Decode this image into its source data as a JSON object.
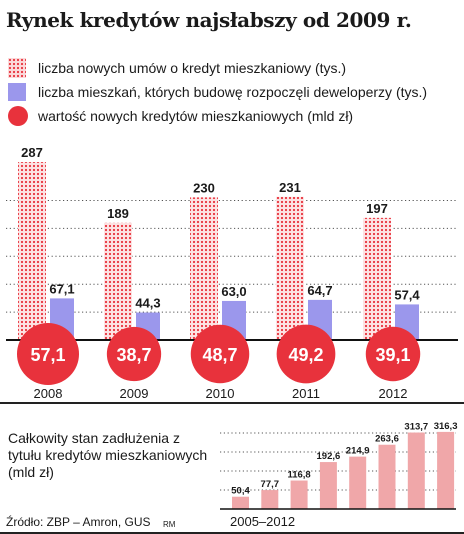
{
  "title": "Rynek kredytów najsłabszy od 2009 r.",
  "legend": [
    {
      "label": "liczba nowych umów o kredyt mieszkaniowy (tys.)",
      "swatch": "dots",
      "color": "#e8323c"
    },
    {
      "label": "liczba mieszkań, których budowę rozpoczęli deweloperzy (tys.)",
      "swatch": "square",
      "color": "#9b97ec"
    },
    {
      "label": "wartość nowych kredytów mieszkaniowych (mld zł)",
      "swatch": "circle",
      "color": "#e8323c"
    }
  ],
  "chart_data": [
    {
      "type": "bar",
      "categories": [
        "2008",
        "2009",
        "2010",
        "2011",
        "2012"
      ],
      "series": [
        {
          "name": "liczba nowych umów o kredyt mieszkaniowy (tys.)",
          "values": [
            287,
            189,
            230,
            231,
            197
          ],
          "labels": [
            "287",
            "189",
            "230",
            "231",
            "197"
          ],
          "color": "#e8323c"
        },
        {
          "name": "liczba mieszkań, których budowę rozpoczęli deweloperzy (tys.)",
          "values": [
            67.1,
            44.3,
            63.0,
            64.7,
            57.4
          ],
          "labels": [
            "67,1",
            "44,3",
            "63,0",
            "64,7",
            "57,4"
          ],
          "color": "#9b97ec"
        },
        {
          "name": "wartość nowych kredytów mieszkaniowych (mld zł)",
          "values": [
            57.1,
            38.7,
            48.7,
            49.2,
            39.1
          ],
          "labels": [
            "57,1",
            "38,7",
            "48,7",
            "49,2",
            "39,1"
          ],
          "color": "#e8323c"
        }
      ],
      "ylim": [
        0,
        300
      ],
      "grid": true
    },
    {
      "type": "bar",
      "title": "Całkowity stan zadłużenia z tytułu kredytów mieszkaniowych (mld zł)",
      "xlabel": "2005–2012",
      "categories": [
        "2005",
        "2006",
        "2007",
        "2008",
        "2009",
        "2010",
        "2011",
        "2012"
      ],
      "values": [
        50.4,
        77.7,
        116.8,
        192.6,
        214.9,
        263.6,
        313.7,
        316.3
      ],
      "labels": [
        "50,4",
        "77,7",
        "116,8",
        "192,6",
        "214,9",
        "263,6",
        "313,7",
        "316,3"
      ],
      "color": "#f0a7a9",
      "ylim": [
        0,
        320
      ],
      "grid": true
    }
  ],
  "inset_title": "Całkowity stan zadłużenia z tytułu kredytów mieszkaniowych (mld zł)",
  "period": "2005–2012",
  "source": "Źródło: ZBP – Amron, GUS",
  "author": "RM"
}
